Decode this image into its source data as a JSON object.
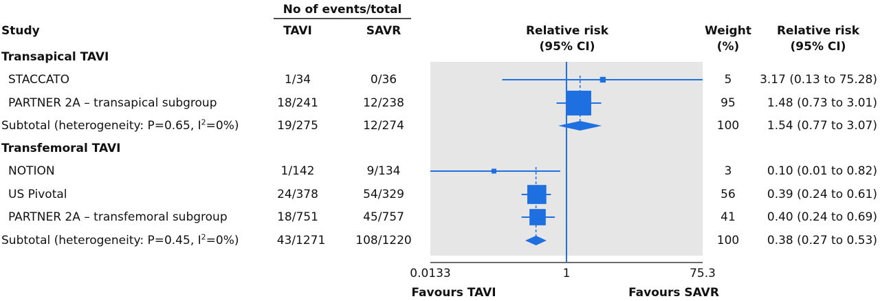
{
  "header": {
    "group_events": "No of events/total",
    "study": "Study",
    "tavi": "TAVI",
    "savr": "SAVR",
    "rr_line1": "Relative risk",
    "rr_line2": "(95% CI)",
    "weight_line1": "Weight",
    "weight_line2": "(%)",
    "rr2_line1": "Relative risk",
    "rr2_line2": "(95% CI)"
  },
  "rows": [
    {
      "kind": "group",
      "label": "Transapical TAVI"
    },
    {
      "kind": "study",
      "label": "STACCATO",
      "tavi": "1/34",
      "savr": "0/36",
      "weight": "5",
      "ci_text": "3.17 (0.13 to 75.28)"
    },
    {
      "kind": "study",
      "label": "PARTNER 2A – transapical subgroup",
      "tavi": "18/241",
      "savr": "12/238",
      "weight": "95",
      "ci_text": "1.48 (0.73 to 3.01)"
    },
    {
      "kind": "subtotal",
      "label_pre": "Subtotal (heterogeneity: P=0.65, I",
      "label_sup": "2",
      "label_post": "=0%)",
      "tavi": "19/275",
      "savr": "12/274",
      "weight": "100",
      "ci_text": "1.54 (0.77 to 3.07)"
    },
    {
      "kind": "group",
      "label": "Transfemoral TAVI"
    },
    {
      "kind": "study",
      "label": "NOTION",
      "tavi": "1/142",
      "savr": "9/134",
      "weight": "3",
      "ci_text": "0.10 (0.01 to 0.82)"
    },
    {
      "kind": "study",
      "label": "US Pivotal",
      "tavi": "24/378",
      "savr": "54/329",
      "weight": "56",
      "ci_text": "0.39 (0.24 to 0.61)"
    },
    {
      "kind": "study",
      "label": "PARTNER 2A – transfemoral subgroup",
      "tavi": "18/751",
      "savr": "45/757",
      "weight": "41",
      "ci_text": "0.40 (0.24 to 0.69)"
    },
    {
      "kind": "subtotal",
      "label_pre": "Subtotal (heterogeneity: P=0.45, I",
      "label_sup": "2",
      "label_post": "=0%)",
      "tavi": "43/1271",
      "savr": "108/1220",
      "weight": "100",
      "ci_text": "0.38 (0.27 to 0.53)"
    }
  ],
  "axis": {
    "min_label": "0.0133",
    "mid_label": "1",
    "max_label": "75.3",
    "favours_left": "Favours TAVI",
    "favours_right": "Favours SAVR"
  },
  "colors": {
    "marker": "#1e6fe0",
    "panel": "#e6e6e6",
    "text": "#111111"
  },
  "chart_data": {
    "type": "forest",
    "scale": "log",
    "xlim": [
      0.0133,
      75.3
    ],
    "reference": 1,
    "xlabel_left": "Favours TAVI",
    "xlabel_right": "Favours SAVR",
    "studies": [
      {
        "group": "Transapical TAVI",
        "name": "STACCATO",
        "rr": 3.17,
        "lo": 0.13,
        "hi": 75.28,
        "weight": 5
      },
      {
        "group": "Transapical TAVI",
        "name": "PARTNER 2A – transapical subgroup",
        "rr": 1.48,
        "lo": 0.73,
        "hi": 3.01,
        "weight": 95
      },
      {
        "group": "Transapical TAVI",
        "name": "Subtotal",
        "rr": 1.54,
        "lo": 0.77,
        "hi": 3.07,
        "weight": 100,
        "pooled": true
      },
      {
        "group": "Transfemoral TAVI",
        "name": "NOTION",
        "rr": 0.1,
        "lo": 0.01,
        "hi": 0.82,
        "weight": 3
      },
      {
        "group": "Transfemoral TAVI",
        "name": "US Pivotal",
        "rr": 0.39,
        "lo": 0.24,
        "hi": 0.61,
        "weight": 56
      },
      {
        "group": "Transfemoral TAVI",
        "name": "PARTNER 2A – transfemoral subgroup",
        "rr": 0.4,
        "lo": 0.24,
        "hi": 0.69,
        "weight": 41
      },
      {
        "group": "Transfemoral TAVI",
        "name": "Subtotal",
        "rr": 0.38,
        "lo": 0.27,
        "hi": 0.53,
        "weight": 100,
        "pooled": true
      }
    ]
  }
}
